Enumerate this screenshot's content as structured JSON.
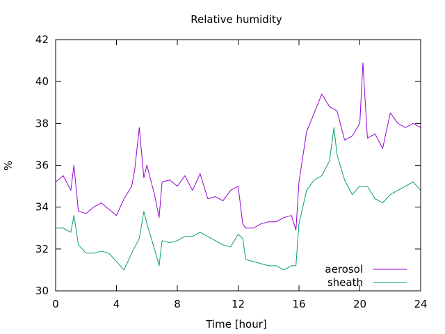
{
  "chart_data": {
    "type": "line",
    "title": "Relative humidity",
    "xlabel": "Time [hour]",
    "ylabel": "%",
    "xlim": [
      0,
      24
    ],
    "ylim": [
      30,
      42
    ],
    "xticks": [
      0,
      4,
      8,
      12,
      16,
      20,
      24
    ],
    "yticks": [
      30,
      32,
      34,
      36,
      38,
      40,
      42
    ],
    "grid": false,
    "legend_position": "bottom-right",
    "series": [
      {
        "name": "aerosol",
        "color": "#9400d3",
        "x": [
          0,
          0.5,
          1,
          1.2,
          1.5,
          2,
          2.5,
          3,
          3.5,
          4,
          4.5,
          5,
          5.2,
          5.5,
          5.8,
          6,
          6.5,
          6.8,
          7,
          7.5,
          8,
          8.5,
          9,
          9.5,
          10,
          10.5,
          11,
          11.5,
          12,
          12.3,
          12.5,
          13,
          13.5,
          14,
          14.5,
          15,
          15.5,
          15.8,
          16,
          16.5,
          17,
          17.5,
          18,
          18.5,
          19,
          19.5,
          20,
          20.2,
          20.5,
          21,
          21.5,
          22,
          22.5,
          23,
          23.5,
          24
        ],
        "y": [
          35.2,
          35.5,
          34.8,
          36.0,
          33.8,
          33.7,
          34.0,
          34.2,
          33.9,
          33.6,
          34.4,
          35.0,
          35.8,
          37.8,
          35.4,
          36.0,
          34.6,
          33.5,
          35.2,
          35.3,
          35.0,
          35.5,
          34.8,
          35.6,
          34.4,
          34.5,
          34.3,
          34.8,
          35.0,
          33.2,
          33.0,
          33.0,
          33.2,
          33.3,
          33.3,
          33.5,
          33.6,
          32.9,
          35.2,
          37.6,
          38.5,
          39.4,
          38.8,
          38.6,
          37.2,
          37.4,
          38.0,
          40.9,
          37.3,
          37.5,
          36.8,
          38.5,
          38.0,
          37.8,
          38.0,
          37.8
        ]
      },
      {
        "name": "sheath",
        "color": "#009e73",
        "x": [
          0,
          0.5,
          1,
          1.2,
          1.5,
          2,
          2.5,
          3,
          3.5,
          4,
          4.5,
          5,
          5.5,
          5.8,
          6,
          6.5,
          6.8,
          7,
          7.5,
          8,
          8.5,
          9,
          9.5,
          10,
          10.5,
          11,
          11.5,
          12,
          12.3,
          12.5,
          13,
          13.5,
          14,
          14.5,
          15,
          15.5,
          15.8,
          16,
          16.5,
          17,
          17.5,
          18,
          18.3,
          18.5,
          19,
          19.5,
          20,
          20.5,
          21,
          21.5,
          22,
          22.5,
          23,
          23.5,
          24
        ],
        "y": [
          33.0,
          33.0,
          32.8,
          33.6,
          32.2,
          31.8,
          31.8,
          31.9,
          31.8,
          31.4,
          31.0,
          31.8,
          32.5,
          33.8,
          33.2,
          32.0,
          31.2,
          32.4,
          32.3,
          32.4,
          32.6,
          32.6,
          32.8,
          32.6,
          32.4,
          32.2,
          32.1,
          32.7,
          32.5,
          31.5,
          31.4,
          31.3,
          31.2,
          31.2,
          31.0,
          31.2,
          31.2,
          33.2,
          34.8,
          35.3,
          35.5,
          36.2,
          37.8,
          36.5,
          35.3,
          34.6,
          35.0,
          35.0,
          34.4,
          34.2,
          34.6,
          34.8,
          35.0,
          35.2,
          34.8
        ]
      }
    ]
  }
}
